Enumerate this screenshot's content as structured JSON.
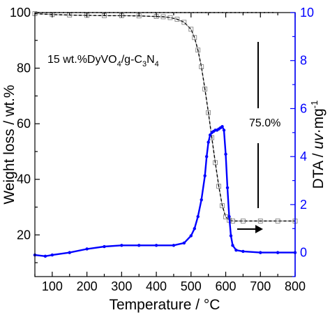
{
  "chart_data": {
    "type": "line",
    "xlabel": "Temperature / ",
    "xlabel_unit": "°C",
    "ylabel": "Weight loss / wt.%",
    "y2label": "DTA / ",
    "y2label_unit_parts": [
      "uv",
      "·mg",
      "-1"
    ],
    "xlim": [
      50,
      800
    ],
    "ylim": [
      5,
      100
    ],
    "y2lim": [
      -1,
      10
    ],
    "x_ticks": [
      100,
      200,
      300,
      400,
      500,
      600,
      700,
      800
    ],
    "y_ticks": [
      20,
      40,
      60,
      80,
      100
    ],
    "y2_ticks": [
      0,
      2,
      4,
      6,
      8,
      10
    ],
    "grid": false,
    "colors": {
      "weight": "#000000",
      "weight_fit": "#888888",
      "dta": "#0000ff"
    },
    "annotations": {
      "sample_parts": [
        "15 wt.%DyVO",
        "4",
        "/g-C",
        "3",
        "N",
        "4"
      ],
      "weight_loss": "75.0%"
    },
    "reference_line_y": 100,
    "series": [
      {
        "axis": "left",
        "style": "weight",
        "x": [
          50,
          100,
          150,
          200,
          250,
          300,
          350,
          400,
          420,
          440,
          460,
          480,
          500,
          510,
          520,
          530,
          540,
          550,
          560,
          570,
          580,
          590,
          600,
          610,
          620,
          650,
          700,
          750,
          800
        ],
        "y": [
          99.6,
          99.3,
          99.1,
          99.0,
          98.9,
          98.9,
          98.8,
          98.6,
          98.5,
          98.2,
          97.6,
          96.5,
          94.0,
          91.0,
          86.5,
          80.5,
          72.5,
          64.0,
          55.0,
          46.0,
          37.5,
          30.5,
          26.5,
          25.3,
          25.0,
          25.0,
          25.0,
          25.0,
          25.0
        ]
      },
      {
        "axis": "right",
        "style": "dta",
        "x": [
          50,
          80,
          100,
          150,
          200,
          250,
          300,
          350,
          400,
          450,
          480,
          500,
          510,
          520,
          530,
          540,
          545,
          550,
          555,
          560,
          565,
          570,
          575,
          580,
          585,
          590,
          595,
          600,
          605,
          610,
          615,
          620,
          630,
          650,
          700,
          750,
          800
        ],
        "y": [
          -0.1,
          -0.15,
          -0.1,
          0.0,
          0.15,
          0.25,
          0.3,
          0.3,
          0.3,
          0.3,
          0.4,
          0.7,
          1.0,
          1.5,
          2.2,
          3.2,
          4.0,
          4.6,
          4.9,
          5.0,
          5.05,
          5.1,
          5.1,
          5.15,
          5.2,
          5.25,
          5.1,
          4.1,
          2.7,
          1.5,
          0.7,
          0.3,
          0.1,
          0.05,
          0.0,
          0.0,
          0.0
        ]
      }
    ]
  }
}
